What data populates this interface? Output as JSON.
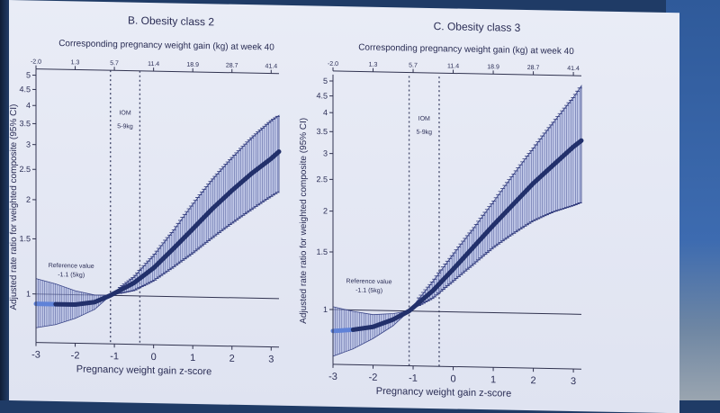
{
  "chart_data": [
    {
      "type": "line",
      "title": "B. Obesity class 2",
      "xlabel": "Pregnancy weight gain z-score",
      "ylabel": "Adjusted rate ratio for weighted composite (95% CI)",
      "x2label": "Corresponding pregnancy weight gain (kg) at week 40",
      "x_ticks": [
        "-3",
        "-2",
        "-1",
        "0",
        "1",
        "2",
        "3"
      ],
      "x2_ticks": [
        "-2.0",
        "1.3",
        "5.7",
        "11.4",
        "18.9",
        "28.7",
        "41.4"
      ],
      "y_ticks": [
        "1",
        "1.5",
        "2",
        "2.5",
        "3",
        "3.5",
        "4",
        "4.5",
        "5"
      ],
      "xlim": [
        -3,
        3.2
      ],
      "ylim": [
        0.7,
        5.1
      ],
      "y_scale": "log",
      "reference_line_y": 1,
      "reference_value_label": [
        "Reference value",
        "-1.1 (5kg)"
      ],
      "iom_label": [
        "IOM",
        "5-9kg"
      ],
      "iom_band": [
        -1.1,
        -0.35
      ],
      "series": [
        {
          "x": [
            -3.0,
            -2.5,
            -2.0,
            -1.5,
            -1.1,
            -0.5,
            0.0,
            0.5,
            1.0,
            1.5,
            2.0,
            2.5,
            3.0,
            3.2
          ],
          "y": [
            0.93,
            0.93,
            0.93,
            0.95,
            1.0,
            1.1,
            1.23,
            1.42,
            1.65,
            1.92,
            2.2,
            2.5,
            2.8,
            2.95
          ],
          "lower": [
            0.78,
            0.8,
            0.84,
            0.9,
            1.0,
            1.04,
            1.12,
            1.24,
            1.38,
            1.55,
            1.73,
            1.92,
            2.12,
            2.2
          ],
          "upper": [
            1.12,
            1.08,
            1.03,
            1.0,
            1.0,
            1.15,
            1.35,
            1.62,
            1.98,
            2.38,
            2.8,
            3.25,
            3.7,
            3.85
          ]
        }
      ]
    },
    {
      "type": "line",
      "title": "C. Obesity class 3",
      "xlabel": "Pregnancy weight gain z-score",
      "ylabel": "Adjusted rate ratio for weighted composite (95% CI)",
      "x2label": "Corresponding pregnancy weight gain (kg) at week 40",
      "x_ticks": [
        "-3",
        "-2",
        "-1",
        "0",
        "1",
        "2",
        "3"
      ],
      "x2_ticks": [
        "-2.0",
        "1.3",
        "5.7",
        "11.4",
        "18.9",
        "28.7",
        "41.4"
      ],
      "y_ticks": [
        "1",
        "1.5",
        "2",
        "2.5",
        "3",
        "3.5",
        "4",
        "4.5",
        "5"
      ],
      "xlim": [
        -3,
        3.2
      ],
      "ylim": [
        0.68,
        5.1
      ],
      "y_scale": "log",
      "reference_line_y": 1,
      "reference_value_label": [
        "Reference value",
        "-1.1 (5kg)"
      ],
      "iom_label": [
        "IOM",
        "5-9kg"
      ],
      "iom_band": [
        -1.1,
        -0.35
      ],
      "series": [
        {
          "x": [
            -3.0,
            -2.5,
            -2.0,
            -1.5,
            -1.1,
            -0.5,
            0.0,
            0.5,
            1.0,
            1.5,
            2.0,
            2.5,
            3.0,
            3.2
          ],
          "y": [
            0.86,
            0.87,
            0.89,
            0.94,
            1.0,
            1.16,
            1.35,
            1.58,
            1.85,
            2.15,
            2.5,
            2.85,
            3.25,
            3.4
          ],
          "lower": [
            0.72,
            0.76,
            0.82,
            0.9,
            1.0,
            1.1,
            1.24,
            1.4,
            1.58,
            1.75,
            1.92,
            2.05,
            2.15,
            2.2
          ],
          "upper": [
            1.02,
            0.99,
            0.97,
            0.98,
            1.0,
            1.24,
            1.5,
            1.8,
            2.18,
            2.65,
            3.2,
            3.85,
            4.6,
            5.0
          ]
        }
      ]
    }
  ]
}
